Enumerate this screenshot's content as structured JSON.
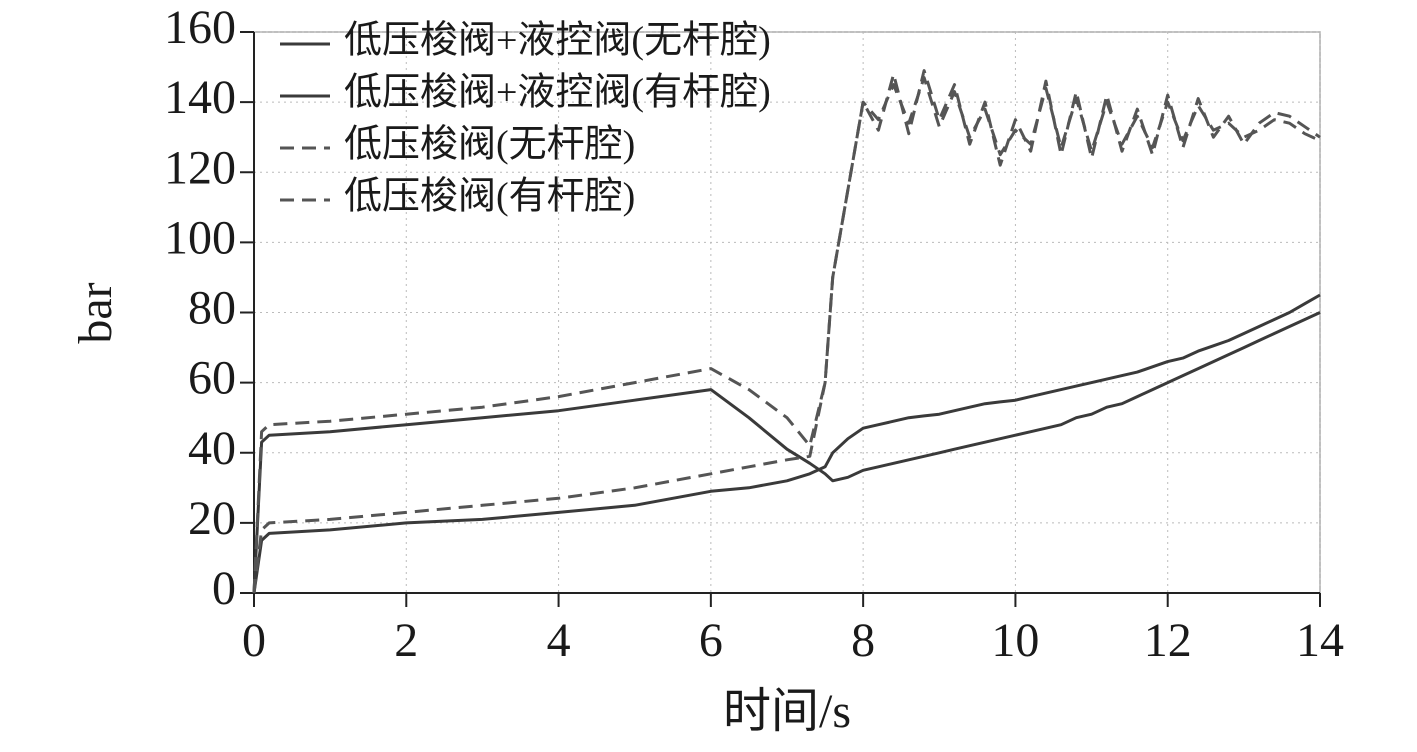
{
  "chart_data": {
    "type": "line",
    "xlabel": "时间/s",
    "ylabel": "bar",
    "x": [
      0,
      0.1,
      0.2,
      1,
      2,
      3,
      4,
      5,
      6,
      6.5,
      7,
      7.3,
      7.5,
      7.6,
      7.8,
      8,
      8.2,
      8.4,
      8.6,
      8.8,
      9,
      9.2,
      9.4,
      9.6,
      9.8,
      10,
      10.2,
      10.4,
      10.6,
      10.8,
      11,
      11.2,
      11.4,
      11.6,
      11.8,
      12,
      12.2,
      12.4,
      12.6,
      12.8,
      13,
      13.2,
      13.4,
      13.6,
      13.8,
      14
    ],
    "series": [
      {
        "name": "低压梭阀+液控阀(无杆腔)",
        "color": "#3a3a3a",
        "dashed": false,
        "values": [
          0,
          43,
          45,
          46,
          48,
          50,
          52,
          55,
          58,
          50,
          41,
          37,
          34,
          32,
          33,
          35,
          36,
          37,
          38,
          39,
          40,
          41,
          42,
          43,
          44,
          45,
          46,
          47,
          48,
          50,
          51,
          53,
          54,
          56,
          58,
          60,
          62,
          64,
          66,
          68,
          70,
          72,
          74,
          76,
          78,
          80
        ]
      },
      {
        "name": "低压梭阀+液控阀(有杆腔)",
        "color": "#3a3a3a",
        "dashed": false,
        "values": [
          0,
          15,
          17,
          18,
          20,
          21,
          23,
          25,
          29,
          30,
          32,
          34,
          36,
          40,
          44,
          47,
          48,
          49,
          50,
          50.5,
          51,
          52,
          53,
          54,
          54.5,
          55,
          56,
          57,
          58,
          59,
          60,
          61,
          62,
          63,
          64.5,
          66,
          67,
          69,
          70.5,
          72,
          74,
          76,
          78,
          80,
          82.5,
          85
        ]
      },
      {
        "name": "低压梭阀(无杆腔)",
        "color": "#555555",
        "dashed": true,
        "values": [
          0,
          46,
          48,
          49,
          51,
          53,
          56,
          60,
          64,
          58,
          50,
          42,
          60,
          90,
          115,
          140,
          132,
          148,
          131,
          149,
          135,
          145,
          128,
          140,
          122,
          135,
          126,
          146,
          125,
          143,
          124,
          142,
          126,
          138,
          125,
          142,
          127,
          141,
          130,
          136,
          128,
          134,
          137,
          136,
          133,
          130
        ]
      },
      {
        "name": "低压梭阀(有杆腔)",
        "color": "#555555",
        "dashed": true,
        "values": [
          0,
          18,
          20,
          21,
          23,
          25,
          27,
          30,
          34,
          36,
          38,
          39,
          60,
          90,
          115,
          140,
          135,
          145,
          134,
          147,
          133,
          143,
          130,
          138,
          125,
          132,
          128,
          144,
          127,
          141,
          126,
          140,
          128,
          136,
          127,
          140,
          129,
          139,
          132,
          134,
          130,
          132,
          135,
          134,
          131,
          129
        ]
      }
    ],
    "xlim": [
      0,
      14
    ],
    "xticks": [
      0,
      2,
      4,
      6,
      8,
      10,
      12,
      14
    ],
    "ylim": [
      0,
      160
    ],
    "yticks": [
      0,
      20,
      40,
      60,
      80,
      100,
      120,
      140,
      160
    ],
    "grid": true,
    "legend": "upper left"
  }
}
